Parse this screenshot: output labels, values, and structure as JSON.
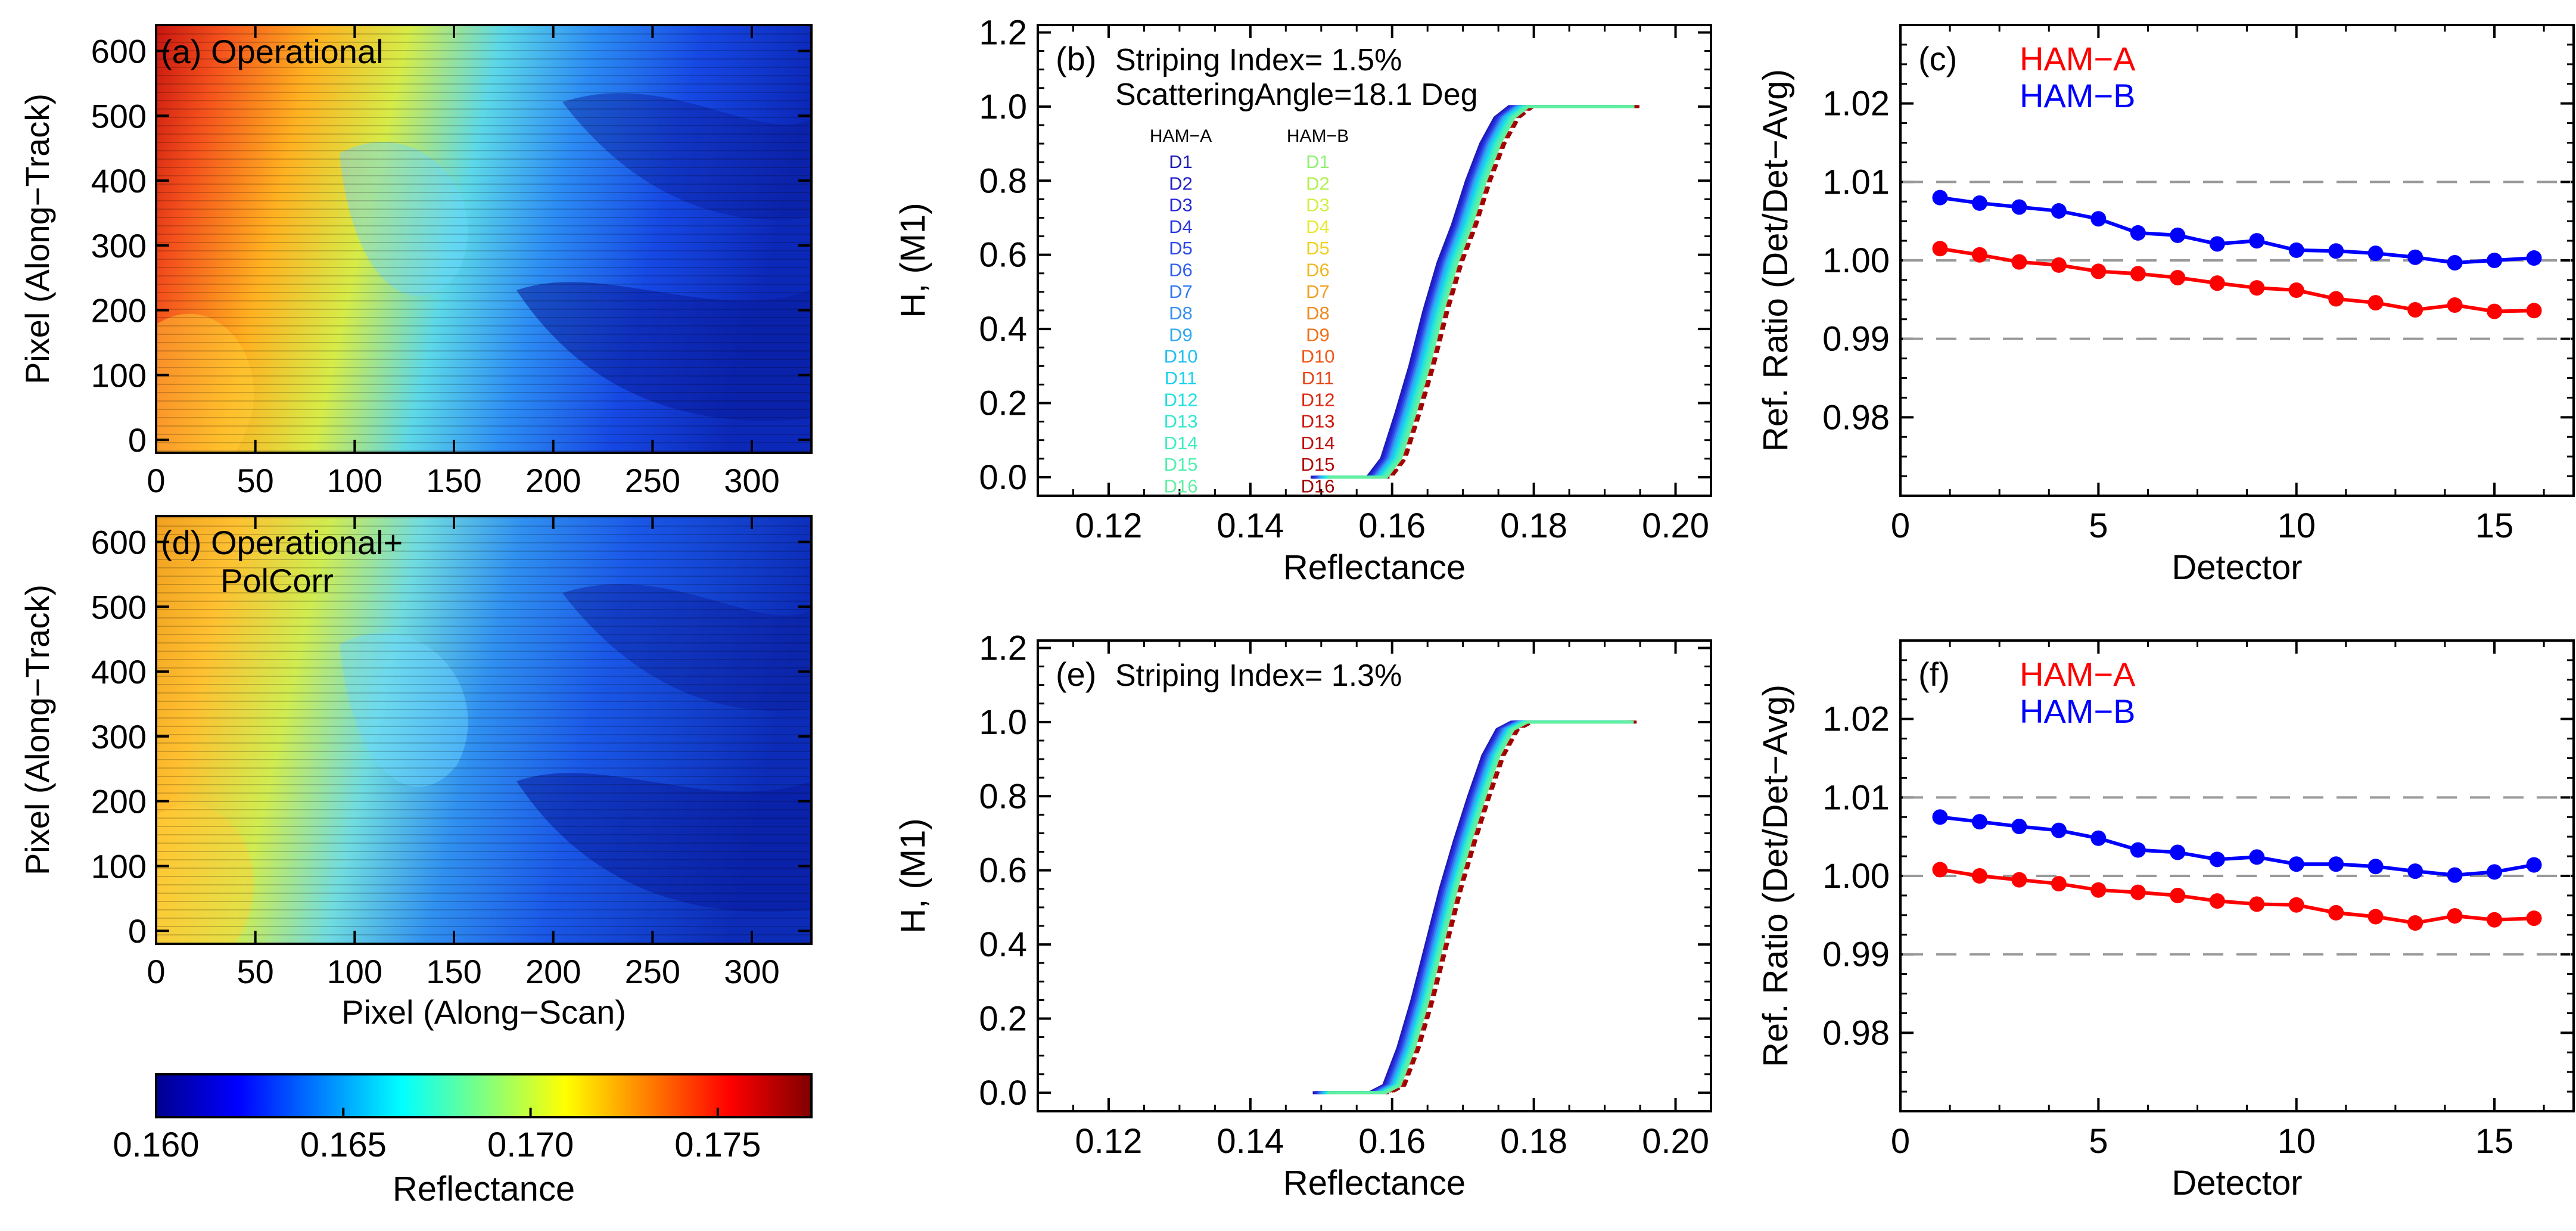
{
  "figure": {
    "colors": {
      "ham_a": "#ff0000",
      "ham_b": "#0000ff",
      "axis": "#000000",
      "grid_dash": "#999999"
    }
  },
  "chart_data": [
    {
      "id": "a",
      "type": "heatmap",
      "panel_label": "(a) Operational",
      "xlabel": "",
      "ylabel": "Pixel (Along−Track)",
      "xlim": [
        0,
        330
      ],
      "ylim": [
        -20,
        640
      ],
      "xticks": [
        0,
        50,
        100,
        150,
        200,
        250,
        300
      ],
      "yticks": [
        0,
        100,
        200,
        300,
        400,
        500,
        600
      ],
      "value_range": [
        0.16,
        0.1775
      ],
      "colorbar": "shared"
    },
    {
      "id": "b",
      "type": "line",
      "panel_label": "(b)",
      "annotations": [
        "Striping Index= 1.5%",
        "ScatteringAngle=18.1 Deg"
      ],
      "xlabel": "Reflectance",
      "ylabel": "H, (M1)",
      "xlim": [
        0.11,
        0.205
      ],
      "ylim": [
        -0.05,
        1.22
      ],
      "xticks": [
        0.12,
        0.14,
        0.16,
        0.18,
        0.2
      ],
      "xtick_labels": [
        "0.12",
        "0.14",
        "0.16",
        "0.18",
        "0.20"
      ],
      "yticks": [
        0.0,
        0.2,
        0.4,
        0.6,
        0.8,
        1.0,
        1.2
      ],
      "ytick_labels": [
        "0.0",
        "0.2",
        "0.4",
        "0.6",
        "0.8",
        "1.0",
        "1.2"
      ],
      "legend": {
        "ham_a_title": "HAM−A",
        "ham_b_title": "HAM−B",
        "entries": [
          "D1",
          "D2",
          "D3",
          "D4",
          "D5",
          "D6",
          "D7",
          "D8",
          "D9",
          "D10",
          "D11",
          "D12",
          "D13",
          "D14",
          "D15",
          "D16"
        ],
        "ham_a_colors": [
          "#1c1cb4",
          "#2020c8",
          "#2828d8",
          "#2a36e0",
          "#2c48e8",
          "#3060f0",
          "#3478f0",
          "#3890f0",
          "#30a8f0",
          "#20c0f0",
          "#18d0f0",
          "#20e0e0",
          "#30e8d0",
          "#40ecc0",
          "#50f0b0",
          "#60f0a0"
        ],
        "ham_b_colors": [
          "#90f070",
          "#b0f050",
          "#d0f040",
          "#e8e830",
          "#f0d020",
          "#f0b820",
          "#f0a020",
          "#f08820",
          "#f07018",
          "#f05818",
          "#e84010",
          "#e02810",
          "#d01808",
          "#c01010",
          "#b00808",
          "#a00000"
        ]
      },
      "cdf_x": [
        0.15,
        0.155,
        0.158,
        0.16,
        0.162,
        0.164,
        0.166,
        0.168,
        0.17,
        0.172,
        0.174,
        0.176,
        0.178,
        0.18,
        0.193
      ],
      "cdf_y": [
        0.0,
        0.0,
        0.0,
        0.05,
        0.17,
        0.3,
        0.45,
        0.58,
        0.68,
        0.8,
        0.9,
        0.97,
        1.0,
        1.0,
        1.0
      ],
      "detector_offsets": [
        -0.0015,
        -0.0013,
        -0.0011,
        -0.0009,
        -0.0008,
        -0.0006,
        -0.0005,
        -0.0003,
        -0.0002,
        0.0,
        0.0002,
        0.0004,
        0.0006,
        0.0008,
        0.001,
        0.0012
      ]
    },
    {
      "id": "c",
      "type": "line",
      "panel_label": "(c)",
      "xlabel": "Detector",
      "ylabel": "Ref. Ratio (Det/Det−Avg)",
      "xlim": [
        0,
        17
      ],
      "ylim": [
        0.97,
        1.03
      ],
      "xticks": [
        0,
        5,
        10,
        15
      ],
      "yticks": [
        0.98,
        0.99,
        1.0,
        1.01,
        1.02
      ],
      "ytick_labels": [
        "0.98",
        "0.99",
        "1.00",
        "1.01",
        "1.02"
      ],
      "hlines": [
        0.99,
        1.0,
        1.01
      ],
      "x": [
        1,
        2,
        3,
        4,
        5,
        6,
        7,
        8,
        9,
        10,
        11,
        12,
        13,
        14,
        15,
        16
      ],
      "series": [
        {
          "name": "HAM−A",
          "color": "#ff0000",
          "values": [
            1.0015,
            1.0007,
            0.9998,
            0.9994,
            0.9986,
            0.9983,
            0.9978,
            0.9971,
            0.9965,
            0.9962,
            0.9951,
            0.9946,
            0.9937,
            0.9943,
            0.9935,
            0.9936
          ]
        },
        {
          "name": "HAM−B",
          "color": "#0000ff",
          "values": [
            1.008,
            1.0073,
            1.0068,
            1.0063,
            1.0053,
            1.0035,
            1.0032,
            1.0021,
            1.0025,
            1.0013,
            1.0012,
            1.0009,
            1.0004,
            0.9997,
            1.0,
            1.0003
          ]
        }
      ]
    },
    {
      "id": "d",
      "type": "heatmap",
      "panel_label_lines": [
        "(d) Operational+",
        "PolCorr"
      ],
      "xlabel": "Pixel (Along−Scan)",
      "ylabel": "Pixel (Along−Track)",
      "xlim": [
        0,
        330
      ],
      "ylim": [
        -20,
        640
      ],
      "xticks": [
        0,
        50,
        100,
        150,
        200,
        250,
        300
      ],
      "yticks": [
        0,
        100,
        200,
        300,
        400,
        500,
        600
      ],
      "value_range": [
        0.16,
        0.1775
      ],
      "colorbar": "shared"
    },
    {
      "id": "e",
      "type": "line",
      "panel_label": "(e)",
      "annotations": [
        "Striping Index= 1.3%"
      ],
      "xlabel": "Reflectance",
      "ylabel": "H, (M1)",
      "xlim": [
        0.11,
        0.205
      ],
      "ylim": [
        -0.05,
        1.22
      ],
      "xticks": [
        0.12,
        0.14,
        0.16,
        0.18,
        0.2
      ],
      "xtick_labels": [
        "0.12",
        "0.14",
        "0.16",
        "0.18",
        "0.20"
      ],
      "yticks": [
        0.0,
        0.2,
        0.4,
        0.6,
        0.8,
        1.0,
        1.2
      ],
      "ytick_labels": [
        "0.0",
        "0.2",
        "0.4",
        "0.6",
        "0.8",
        "1.0",
        "1.2"
      ],
      "cdf_x": [
        0.15,
        0.155,
        0.158,
        0.16,
        0.162,
        0.164,
        0.166,
        0.168,
        0.17,
        0.172,
        0.174,
        0.176,
        0.178,
        0.18,
        0.193
      ],
      "cdf_y": [
        0.0,
        0.0,
        0.0,
        0.02,
        0.12,
        0.25,
        0.4,
        0.55,
        0.68,
        0.8,
        0.91,
        0.98,
        1.0,
        1.0,
        1.0
      ],
      "detector_offsets": [
        -0.0012,
        -0.001,
        -0.0009,
        -0.0007,
        -0.0006,
        -0.0004,
        -0.0003,
        -0.0001,
        0.0,
        0.0002,
        0.0003,
        0.0005,
        0.0006,
        0.0008,
        0.0009,
        0.0011
      ]
    },
    {
      "id": "f",
      "type": "line",
      "panel_label": "(f)",
      "xlabel": "Detector",
      "ylabel": "Ref. Ratio (Det/Det−Avg)",
      "xlim": [
        0,
        17
      ],
      "ylim": [
        0.97,
        1.03
      ],
      "xticks": [
        0,
        5,
        10,
        15
      ],
      "yticks": [
        0.98,
        0.99,
        1.0,
        1.01,
        1.02
      ],
      "ytick_labels": [
        "0.98",
        "0.99",
        "1.00",
        "1.01",
        "1.02"
      ],
      "hlines": [
        0.99,
        1.0,
        1.01
      ],
      "x": [
        1,
        2,
        3,
        4,
        5,
        6,
        7,
        8,
        9,
        10,
        11,
        12,
        13,
        14,
        15,
        16
      ],
      "series": [
        {
          "name": "HAM−A",
          "color": "#ff0000",
          "values": [
            1.0008,
            1.0,
            0.9995,
            0.999,
            0.9982,
            0.9979,
            0.9975,
            0.9968,
            0.9964,
            0.9963,
            0.9953,
            0.9948,
            0.994,
            0.9949,
            0.9944,
            0.9946
          ]
        },
        {
          "name": "HAM−B",
          "color": "#0000ff",
          "values": [
            1.0075,
            1.0069,
            1.0063,
            1.0058,
            1.0048,
            1.0033,
            1.003,
            1.0021,
            1.0024,
            1.0015,
            1.0015,
            1.0012,
            1.0006,
            1.0001,
            1.0005,
            1.0014
          ]
        }
      ]
    },
    {
      "id": "colorbar",
      "type": "colorbar",
      "label": "Reflectance",
      "range": [
        0.16,
        0.1775
      ],
      "ticks": [
        0.16,
        0.165,
        0.17,
        0.175
      ],
      "tick_labels": [
        "0.160",
        "0.165",
        "0.170",
        "0.175"
      ]
    }
  ]
}
